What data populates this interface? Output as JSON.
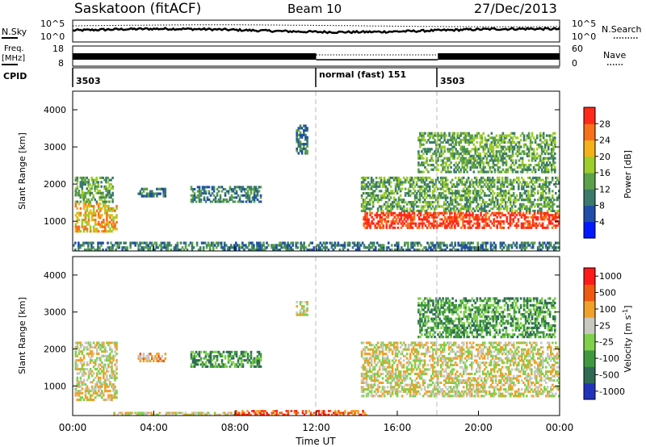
{
  "header": {
    "title": "Saskatoon (fitACF)",
    "beam": "Beam 10",
    "date": "27/Dec/2013"
  },
  "noise_panel": {
    "left_label": "N.Sky",
    "right_label": "N.Search",
    "left_ticks": [
      "10^5",
      "10^0"
    ],
    "right_ticks": [
      "10^5",
      "10^0"
    ]
  },
  "freq_panel": {
    "left_label": "Freq.",
    "left_unit": "[MHz]",
    "left_ticks": [
      "18",
      "8"
    ],
    "right_label": "Nave",
    "right_ticks": [
      "60",
      "0"
    ]
  },
  "cpid_panel": {
    "label": "CPID",
    "segments": [
      {
        "start": 0.0,
        "end": 12.0,
        "text": "3503"
      },
      {
        "start": 12.0,
        "end": 18.0,
        "text": "normal (fast) 151"
      },
      {
        "start": 18.0,
        "end": 24.0,
        "text": "3503"
      }
    ]
  },
  "colors": {
    "power_scale": [
      "#0019ff",
      "#1f4ea8",
      "#3b7a6a",
      "#5ca14a",
      "#9ccd2b",
      "#f3b21a",
      "#f7701a",
      "#ff2a1a"
    ],
    "velocity_scale": [
      "#2233bb",
      "#2e6b55",
      "#3f9a3f",
      "#7fd04a",
      "#c8c8c0",
      "#f0a12a",
      "#f05a10",
      "#ff1a1a"
    ],
    "grey": "#bdbdbd"
  },
  "chart_data": [
    {
      "type": "heatmap",
      "name": "power",
      "ylabel": "Slant Range [km]",
      "yticks": [
        1000,
        2000,
        3000,
        4000
      ],
      "ylim": [
        200,
        4500
      ],
      "colorbar": {
        "label": "Power [dB]",
        "ticks": [
          4,
          8,
          12,
          16,
          20,
          24,
          28
        ],
        "range": [
          0,
          32
        ]
      },
      "regions": [
        {
          "t0": 0.1,
          "t1": 2.2,
          "r0": 700,
          "r1": 1500,
          "level": 5
        },
        {
          "t0": 0.1,
          "t1": 2.0,
          "r0": 1500,
          "r1": 2200,
          "level": 3
        },
        {
          "t0": 3.2,
          "t1": 4.6,
          "r0": 1650,
          "r1": 1900,
          "level": 2
        },
        {
          "t0": 5.8,
          "t1": 9.3,
          "r0": 1500,
          "r1": 1950,
          "level": 2
        },
        {
          "t0": 11.0,
          "t1": 11.6,
          "r0": 2800,
          "r1": 3600,
          "level": 2
        },
        {
          "t0": 14.3,
          "t1": 24.0,
          "r0": 800,
          "r1": 1250,
          "level": 7
        },
        {
          "t0": 14.2,
          "t1": 24.0,
          "r0": 1250,
          "r1": 2200,
          "level": 3
        },
        {
          "t0": 17.0,
          "t1": 23.8,
          "r0": 2300,
          "r1": 3400,
          "level": 3
        },
        {
          "t0": 0.0,
          "t1": 24.0,
          "r0": 200,
          "r1": 450,
          "level": 2
        }
      ]
    },
    {
      "type": "heatmap",
      "name": "velocity",
      "ylabel": "Slant Range [km]",
      "yticks": [
        1000,
        2000,
        3000,
        4000
      ],
      "ylim": [
        200,
        4500
      ],
      "colorbar": {
        "label": "Velocity [m s^-1]",
        "ticks": [
          1000,
          500,
          100,
          25,
          -25,
          -100,
          -500,
          -1000
        ],
        "range": [
          -1200,
          1200
        ]
      },
      "regions": [
        {
          "t0": 0.1,
          "t1": 2.2,
          "r0": 600,
          "r1": 2200,
          "level": 4
        },
        {
          "t0": 3.2,
          "t1": 4.6,
          "r0": 1650,
          "r1": 1900,
          "level": 5
        },
        {
          "t0": 5.8,
          "t1": 9.3,
          "r0": 1500,
          "r1": 1950,
          "level": 2
        },
        {
          "t0": 11.0,
          "t1": 11.6,
          "r0": 2900,
          "r1": 3300,
          "level": 4
        },
        {
          "t0": 14.2,
          "t1": 24.0,
          "r0": 700,
          "r1": 2200,
          "level": 4
        },
        {
          "t0": 17.0,
          "t1": 23.8,
          "r0": 2300,
          "r1": 3400,
          "level": 2
        },
        {
          "t0": 8.0,
          "t1": 14.5,
          "r0": 200,
          "r1": 350,
          "level": 6
        },
        {
          "t0": 2.0,
          "t1": 8.0,
          "r0": 200,
          "r1": 300,
          "level": 4
        }
      ]
    }
  ],
  "time_axis": {
    "xlabel": "Time UT",
    "ticks": [
      "00:00",
      "04:00",
      "08:00",
      "12:00",
      "16:00",
      "20:00",
      "00:00"
    ],
    "xlim": [
      0,
      24
    ],
    "markers": [
      12,
      18
    ]
  }
}
